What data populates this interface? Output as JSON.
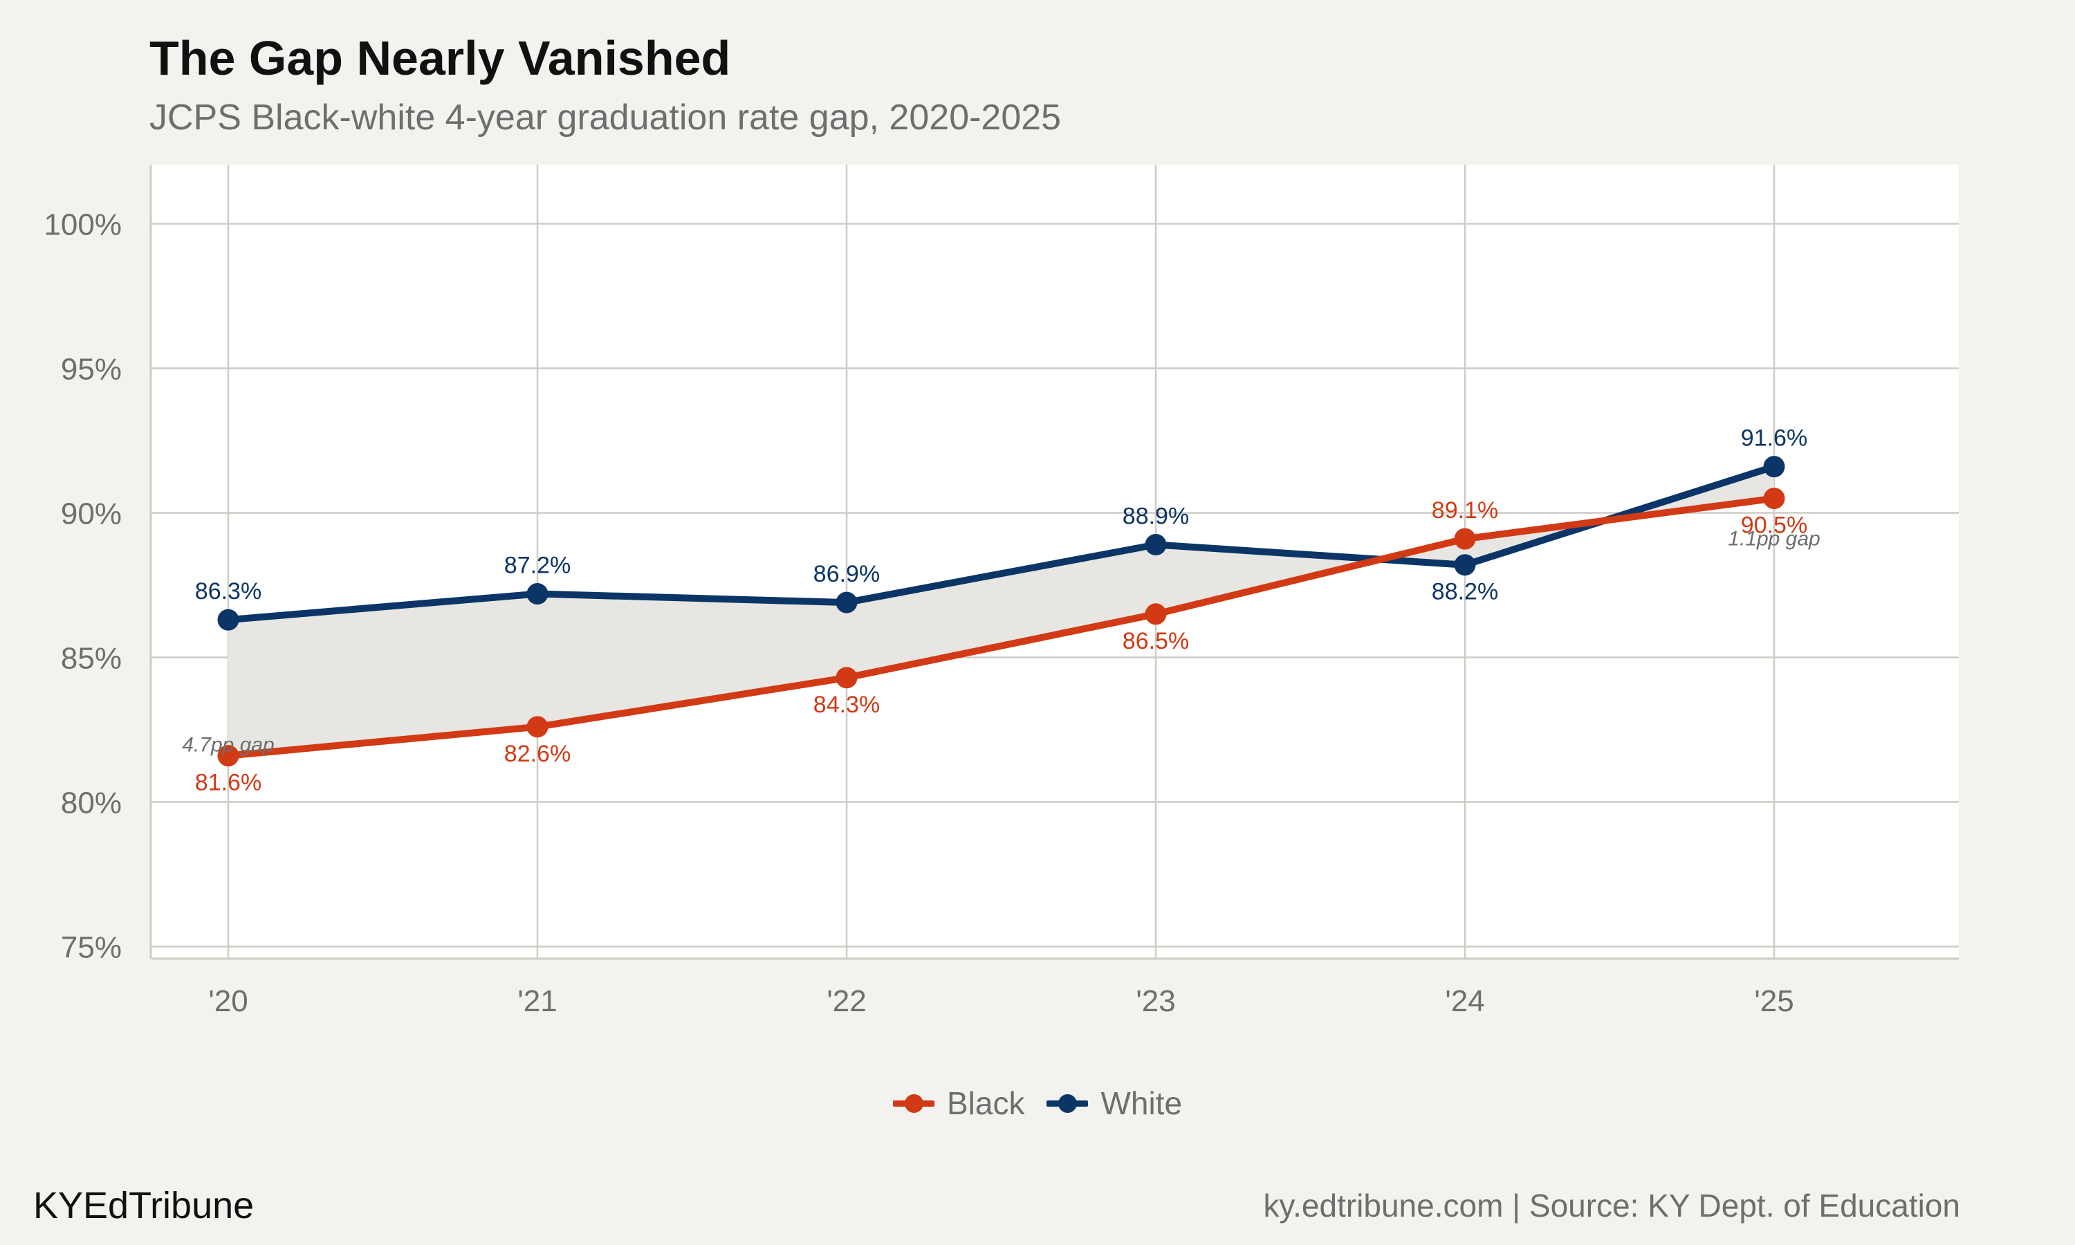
{
  "title": "The Gap Nearly Vanished",
  "subtitle": "JCPS Black-white 4-year graduation rate gap, 2020-2025",
  "footer": {
    "brand": "KYEdTribune",
    "source": "ky.edtribune.com | Source: KY Dept. of Education"
  },
  "colors": {
    "background": "#f4f2ee",
    "panel": "#ffffff",
    "grid": "#cfccc6",
    "gap_fill": "#e8e6e2",
    "black_series": "#d13a14",
    "white_series": "#0b3566",
    "annotation": "#6e6e6e"
  },
  "chart_data": {
    "type": "line",
    "categories": [
      "'20",
      "'21",
      "'22",
      "'23",
      "'24",
      "'25"
    ],
    "series": [
      {
        "name": "Black",
        "color": "#d13a14",
        "values": [
          81.6,
          82.6,
          84.3,
          86.5,
          89.1,
          90.5
        ],
        "labels": [
          "81.6%",
          "82.6%",
          "84.3%",
          "86.5%",
          "89.1%",
          "90.5%"
        ]
      },
      {
        "name": "White",
        "color": "#0b3566",
        "values": [
          86.3,
          87.2,
          86.9,
          88.9,
          88.2,
          91.6
        ],
        "labels": [
          "86.3%",
          "87.2%",
          "86.9%",
          "88.9%",
          "88.2%",
          "91.6%"
        ]
      }
    ],
    "ylim": [
      75,
      100
    ],
    "yticks": [
      75,
      80,
      85,
      90,
      95,
      100
    ],
    "ytick_labels": [
      "75%",
      "80%",
      "85%",
      "90%",
      "95%",
      "100%"
    ],
    "shaded_gap_between_series": true,
    "annotations": [
      {
        "text": "4.7pp gap",
        "category_index": 0
      },
      {
        "text": "1.1pp gap",
        "category_index": 5
      }
    ],
    "grid": true,
    "legend_position": "bottom"
  }
}
